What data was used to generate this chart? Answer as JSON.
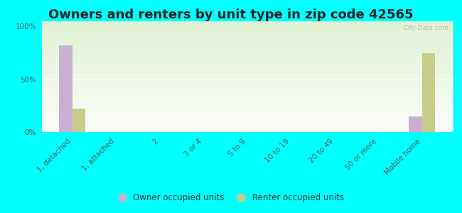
{
  "title": "Owners and renters by unit type in zip code 42565",
  "categories": [
    "1, detached",
    "1, attached",
    "2",
    "3 or 4",
    "5 to 9",
    "10 to 19",
    "20 to 49",
    "50 or more",
    "Mobile home"
  ],
  "owner_values": [
    82,
    0,
    0,
    0,
    0,
    0,
    0,
    0,
    15
  ],
  "renter_values": [
    22,
    0,
    0,
    0,
    0,
    0,
    0,
    0,
    75
  ],
  "owner_color": "#c9afd4",
  "renter_color": "#c8cc8a",
  "background_color": "#00ffff",
  "yticks": [
    0,
    50,
    100
  ],
  "ylim": [
    0,
    105
  ],
  "watermark": "City-Data.com",
  "title_fontsize": 13,
  "tick_fontsize": 7.5,
  "bar_width": 0.3,
  "legend_labels": [
    "Owner occupied units",
    "Renter occupied units"
  ]
}
